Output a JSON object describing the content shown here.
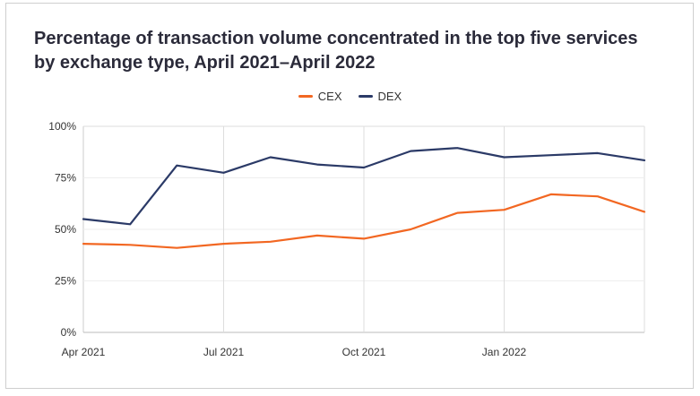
{
  "chart_data": {
    "type": "line",
    "title": "Percentage of transaction volume concentrated in the top five services by exchange type, April 2021–April 2022",
    "x": [
      "2021-04",
      "2021-05",
      "2021-06",
      "2021-07",
      "2021-08",
      "2021-09",
      "2021-10",
      "2021-11",
      "2021-12",
      "2022-01",
      "2022-02",
      "2022-03",
      "2022-04"
    ],
    "x_tick_labels": [
      "Apr 2021",
      "Jul 2021",
      "Oct 2021",
      "Jan 2022"
    ],
    "x_tick_positions": [
      "2021-04",
      "2021-07",
      "2021-10",
      "2022-01"
    ],
    "y_tick_labels": [
      "0%",
      "25%",
      "50%",
      "75%",
      "100%"
    ],
    "ylim": [
      0,
      100
    ],
    "grid": "vertical",
    "legend": "top-center",
    "series": [
      {
        "name": "CEX",
        "color": "#f26722",
        "values": [
          43,
          42.5,
          41,
          43,
          44,
          47,
          45.5,
          50,
          58,
          59.5,
          67,
          66,
          58.5
        ]
      },
      {
        "name": "DEX",
        "color": "#2b3a67",
        "values": [
          55,
          52.5,
          81,
          77.5,
          85,
          81.5,
          80,
          88,
          89.5,
          85,
          86,
          87,
          83.5
        ]
      }
    ]
  }
}
